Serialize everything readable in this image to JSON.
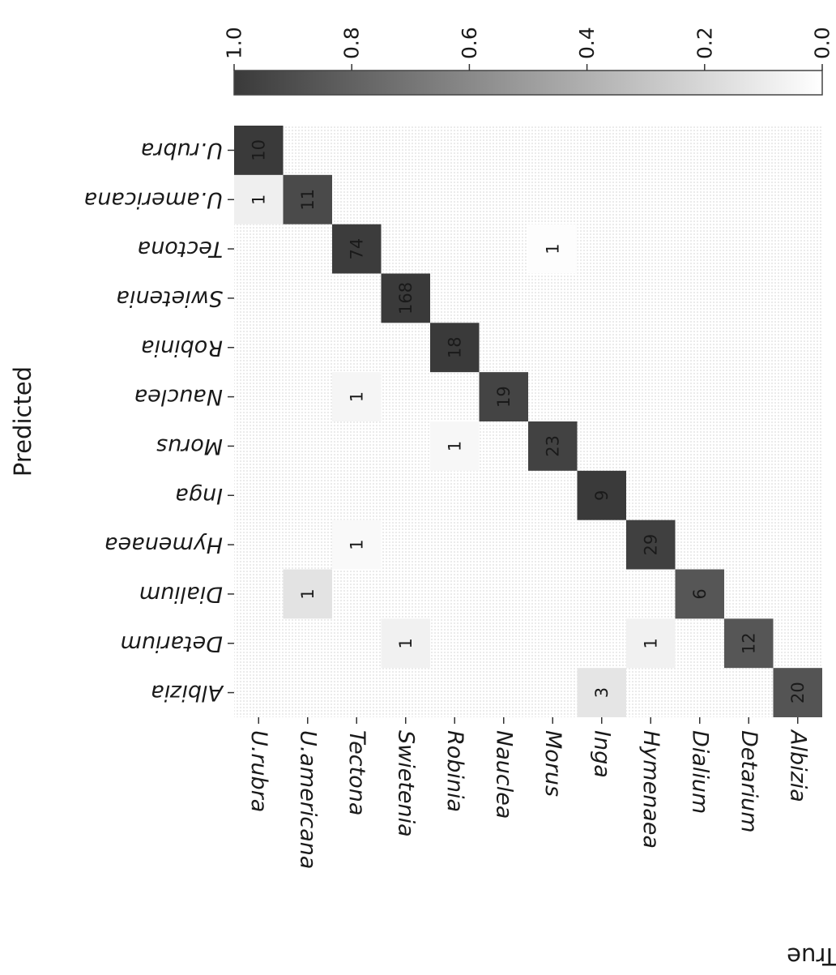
{
  "chart_data": {
    "type": "heatmap",
    "title": "",
    "xlabel": "Predicted",
    "ylabel": "True",
    "rows": [
      "Albizia",
      "Detarium",
      "Dialium",
      "Hymenaea",
      "Inga",
      "Morus",
      "Nauclea",
      "Robinia",
      "Swietenia",
      "Tectona",
      "U.americana",
      "U.rubra"
    ],
    "columns": [
      "Albizia",
      "Detarium",
      "Dialium",
      "Hymenaea",
      "Inga",
      "Morus",
      "Nauclea",
      "Robinia",
      "Swietenia",
      "Tectona",
      "U.americana",
      "U.rubra"
    ],
    "counts": [
      [
        20,
        0,
        0,
        0,
        3,
        0,
        0,
        0,
        0,
        0,
        0,
        0
      ],
      [
        0,
        12,
        0,
        1,
        0,
        0,
        0,
        0,
        1,
        0,
        0,
        0
      ],
      [
        0,
        0,
        6,
        0,
        0,
        0,
        0,
        0,
        0,
        0,
        1,
        0
      ],
      [
        0,
        0,
        0,
        29,
        0,
        0,
        0,
        0,
        0,
        1,
        0,
        0
      ],
      [
        0,
        0,
        0,
        0,
        9,
        0,
        0,
        0,
        0,
        0,
        0,
        0
      ],
      [
        0,
        0,
        0,
        0,
        0,
        23,
        0,
        1,
        0,
        0,
        0,
        0
      ],
      [
        0,
        0,
        0,
        0,
        0,
        0,
        19,
        0,
        0,
        1,
        0,
        0
      ],
      [
        0,
        0,
        0,
        0,
        0,
        0,
        0,
        18,
        0,
        0,
        0,
        0
      ],
      [
        0,
        0,
        0,
        0,
        0,
        0,
        0,
        0,
        168,
        0,
        0,
        0
      ],
      [
        0,
        0,
        0,
        0,
        0,
        1,
        0,
        0,
        0,
        74,
        0,
        0
      ],
      [
        0,
        0,
        0,
        0,
        0,
        0,
        0,
        0,
        0,
        0,
        11,
        1
      ],
      [
        0,
        0,
        0,
        0,
        0,
        0,
        0,
        0,
        0,
        0,
        0,
        10
      ]
    ],
    "normalized": [
      [
        0.87,
        0,
        0,
        0,
        0.13,
        0,
        0,
        0,
        0,
        0,
        0,
        0
      ],
      [
        0,
        0.86,
        0,
        0.07,
        0,
        0,
        0,
        0,
        0.07,
        0,
        0,
        0
      ],
      [
        0,
        0,
        0.86,
        0,
        0,
        0,
        0,
        0,
        0,
        0,
        0.14,
        0
      ],
      [
        0,
        0,
        0,
        0.97,
        0,
        0,
        0,
        0,
        0,
        0.03,
        0,
        0
      ],
      [
        0,
        0,
        0,
        0,
        1.0,
        0,
        0,
        0,
        0,
        0,
        0,
        0
      ],
      [
        0,
        0,
        0,
        0,
        0,
        0.96,
        0,
        0.04,
        0,
        0,
        0,
        0
      ],
      [
        0,
        0,
        0,
        0,
        0,
        0,
        0.95,
        0,
        0,
        0.05,
        0,
        0
      ],
      [
        0,
        0,
        0,
        0,
        0,
        0,
        0,
        1.0,
        0,
        0,
        0,
        0
      ],
      [
        0,
        0,
        0,
        0,
        0,
        0,
        0,
        0,
        1.0,
        0,
        0,
        0
      ],
      [
        0,
        0,
        0,
        0,
        0,
        0.01,
        0,
        0,
        0,
        0.99,
        0,
        0
      ],
      [
        0,
        0,
        0,
        0,
        0,
        0,
        0,
        0,
        0,
        0,
        0.92,
        0.08
      ],
      [
        0,
        0,
        0,
        0,
        0,
        0,
        0,
        0,
        0,
        0,
        0,
        1.0
      ]
    ],
    "colorbar": {
      "range": [
        0.0,
        1.0
      ],
      "ticks": [
        "0.0",
        "0.2",
        "0.4",
        "0.6",
        "0.8",
        "1.0"
      ]
    },
    "colormap": {
      "low": "#ffffff",
      "high": "#3a3a3a"
    },
    "grid": false,
    "orientation": "rotated 180 degrees"
  }
}
